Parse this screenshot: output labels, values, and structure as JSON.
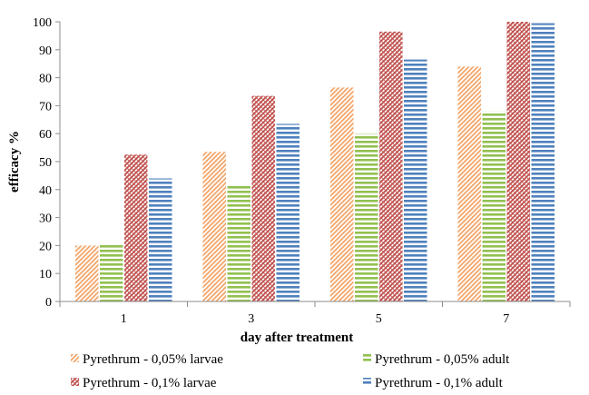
{
  "chart_data": {
    "type": "bar",
    "xlabel": "day after treatment",
    "ylabel": "efficacy %",
    "categories": [
      "1",
      "3",
      "5",
      "7"
    ],
    "ylim": [
      0,
      100
    ],
    "yticks": [
      0,
      10,
      20,
      30,
      40,
      50,
      60,
      70,
      80,
      90,
      100
    ],
    "grid": false,
    "legend_position": "bottom",
    "series": [
      {
        "name": "Pyrethrum - 0,05% larvae",
        "values": [
          20,
          53.5,
          76.5,
          84
        ],
        "color": "#F4A66A",
        "pattern": "diag-up"
      },
      {
        "name": "Pyrethrum - 0,05% adult",
        "values": [
          20.5,
          41.5,
          60,
          68
        ],
        "color": "#92C050",
        "pattern": "horizontal"
      },
      {
        "name": "Pyrethrum - 0,1% larvae",
        "values": [
          52.5,
          73.5,
          96.5,
          100
        ],
        "color": "#C0504D",
        "pattern": "diag-cross"
      },
      {
        "name": "Pyrethrum - 0,1% adult",
        "values": [
          44,
          63.5,
          86.5,
          99.5
        ],
        "color": "#4F81BD",
        "pattern": "horizontal"
      }
    ]
  }
}
